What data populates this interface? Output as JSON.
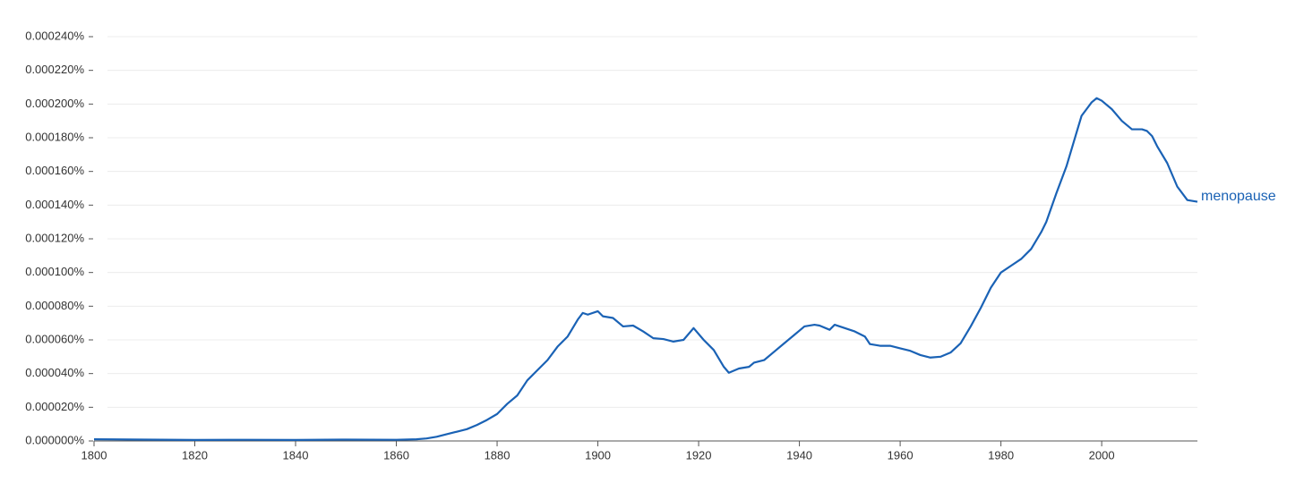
{
  "chart_data": {
    "type": "line",
    "x": [
      1800,
      1810,
      1820,
      1830,
      1840,
      1850,
      1860,
      1864,
      1866,
      1868,
      1870,
      1872,
      1874,
      1876,
      1878,
      1880,
      1882,
      1884,
      1886,
      1888,
      1890,
      1892,
      1894,
      1896,
      1897,
      1898,
      1900,
      1901,
      1903,
      1905,
      1907,
      1909,
      1911,
      1913,
      1915,
      1917,
      1919,
      1921,
      1923,
      1925,
      1926,
      1928,
      1930,
      1931,
      1933,
      1935,
      1937,
      1939,
      1941,
      1943,
      1944,
      1946,
      1947,
      1949,
      1951,
      1953,
      1954,
      1956,
      1958,
      1960,
      1962,
      1964,
      1966,
      1968,
      1970,
      1972,
      1974,
      1976,
      1978,
      1980,
      1982,
      1984,
      1986,
      1988,
      1989,
      1991,
      1993,
      1995,
      1996,
      1997,
      1998,
      1999,
      2000,
      2002,
      2004,
      2006,
      2008,
      2009,
      2010,
      2011,
      2013,
      2015,
      2017,
      2019
    ],
    "series": [
      {
        "name": "menopause",
        "color": "#1a62b5",
        "values": [
          1e-06,
          8e-07,
          6e-07,
          7e-07,
          6e-07,
          8e-07,
          7e-07,
          1e-06,
          1.5e-06,
          2.5e-06,
          4e-06,
          5.5e-06,
          7e-06,
          9.5e-06,
          1.25e-05,
          1.6e-05,
          2.2e-05,
          2.7e-05,
          3.6e-05,
          4.2e-05,
          4.8e-05,
          5.6e-05,
          6.2e-05,
          7.2e-05,
          7.6e-05,
          7.5e-05,
          7.7e-05,
          7.4e-05,
          7.3e-05,
          6.8e-05,
          6.85e-05,
          6.5e-05,
          6.1e-05,
          6.05e-05,
          5.9e-05,
          6e-05,
          6.7e-05,
          6e-05,
          5.4e-05,
          4.4e-05,
          4.05e-05,
          4.3e-05,
          4.4e-05,
          4.65e-05,
          4.8e-05,
          5.3e-05,
          5.8e-05,
          6.3e-05,
          6.8e-05,
          6.9e-05,
          6.85e-05,
          6.6e-05,
          6.9e-05,
          6.7e-05,
          6.5e-05,
          6.2e-05,
          5.75e-05,
          5.65e-05,
          5.65e-05,
          5.5e-05,
          5.35e-05,
          5.1e-05,
          4.95e-05,
          5e-05,
          5.25e-05,
          5.8e-05,
          6.8e-05,
          7.9e-05,
          9.1e-05,
          0.0001,
          0.000104,
          0.000108,
          0.000114,
          0.000124,
          0.00013,
          0.000147,
          0.000163,
          0.000183,
          0.000193,
          0.000197,
          0.000201,
          0.0002035,
          0.000202,
          0.000197,
          0.00019,
          0.000185,
          0.000185,
          0.000184,
          0.000181,
          0.000175,
          0.000165,
          0.000151,
          0.000143,
          0.000142
        ]
      }
    ],
    "xlim": [
      1800,
      2019
    ],
    "xticks": [
      1800,
      1820,
      1840,
      1860,
      1880,
      1900,
      1920,
      1940,
      1960,
      1980,
      2000
    ],
    "ylim": [
      0,
      0.00024
    ],
    "yticks": [
      {
        "value": 0,
        "label": "0.000000%"
      },
      {
        "value": 2e-05,
        "label": "0.000020%"
      },
      {
        "value": 4e-05,
        "label": "0.000040%"
      },
      {
        "value": 6e-05,
        "label": "0.000060%"
      },
      {
        "value": 8e-05,
        "label": "0.000080%"
      },
      {
        "value": 0.0001,
        "label": "0.000100%"
      },
      {
        "value": 0.00012,
        "label": "0.000120%"
      },
      {
        "value": 0.00014,
        "label": "0.000140%"
      },
      {
        "value": 0.00016,
        "label": "0.000160%"
      },
      {
        "value": 0.00018,
        "label": "0.000180%"
      },
      {
        "value": 0.0002,
        "label": "0.000200%"
      },
      {
        "value": 0.00022,
        "label": "0.000220%"
      },
      {
        "value": 0.00024,
        "label": "0.000240%"
      }
    ],
    "grid": true
  }
}
